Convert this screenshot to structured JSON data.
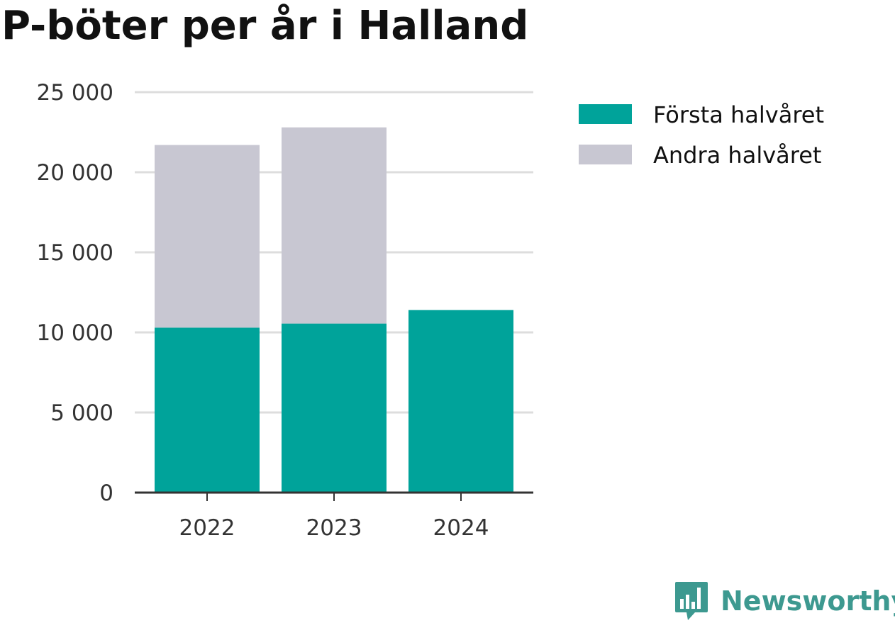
{
  "colors": {
    "first_half": "#00a39a",
    "second_half": "#c8c7d2",
    "grid": "#dddddd",
    "axis": "#333333",
    "brand": "#3d9990"
  },
  "brand": {
    "name": "Newsworthy",
    "icon": "newsworthy-logo-icon"
  },
  "chart_data": {
    "type": "bar",
    "stacked": true,
    "title": "P-böter per år i Halland",
    "xlabel": "",
    "ylabel": "",
    "categories": [
      "2022",
      "2023",
      "2024"
    ],
    "series": [
      {
        "name": "Första halvåret",
        "values": [
          10300,
          10550,
          11400
        ]
      },
      {
        "name": "Andra halvåret",
        "values": [
          11400,
          12250,
          null
        ]
      }
    ],
    "ylim": [
      0,
      25000
    ],
    "yticks": [
      0,
      5000,
      10000,
      15000,
      20000,
      25000
    ],
    "ytick_labels": [
      "0",
      "5 000",
      "10 000",
      "15 000",
      "20 000",
      "25 000"
    ],
    "grid": true,
    "legend_position": "right"
  }
}
